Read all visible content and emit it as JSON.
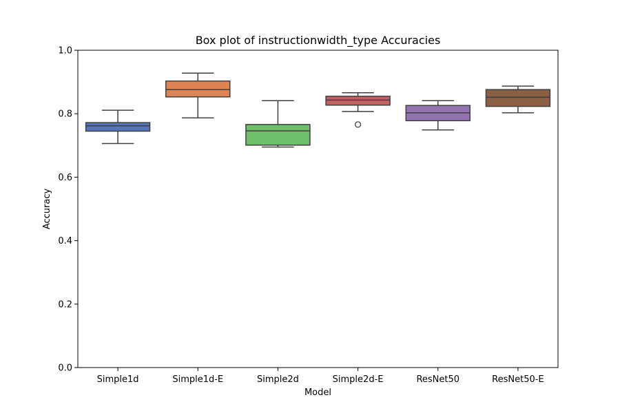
{
  "chart_data": {
    "type": "box",
    "title": "Box plot of instructionwidth_type Accuracies",
    "xlabel": "Model",
    "ylabel": "Accuracy",
    "ylim": [
      0,
      1
    ],
    "yticks": [
      0.0,
      0.2,
      0.4,
      0.6,
      0.8,
      1.0
    ],
    "ytick_labels": [
      "0.0",
      "0.2",
      "0.4",
      "0.6",
      "0.8",
      "1.0"
    ],
    "grid": false,
    "categories": [
      "Simple1d",
      "Simple1d-E",
      "Simple2d",
      "Simple2d-E",
      "ResNet50",
      "ResNet50-E"
    ],
    "boxes": [
      {
        "category": "Simple1d",
        "whisker_low": 0.706,
        "q1": 0.745,
        "median": 0.762,
        "q3": 0.772,
        "whisker_high": 0.811,
        "outliers": [],
        "color": "#5875b8"
      },
      {
        "category": "Simple1d-E",
        "whisker_low": 0.787,
        "q1": 0.853,
        "median": 0.876,
        "q3": 0.903,
        "whisker_high": 0.928,
        "outliers": [],
        "color": "#dd8452"
      },
      {
        "category": "Simple2d",
        "whisker_low": 0.695,
        "q1": 0.701,
        "median": 0.746,
        "q3": 0.766,
        "whisker_high": 0.841,
        "outliers": [],
        "color": "#6fbf6a"
      },
      {
        "category": "Simple2d-E",
        "whisker_low": 0.807,
        "q1": 0.827,
        "median": 0.843,
        "q3": 0.855,
        "whisker_high": 0.866,
        "outliers": [
          0.766
        ],
        "color": "#c95e61"
      },
      {
        "category": "ResNet50",
        "whisker_low": 0.749,
        "q1": 0.778,
        "median": 0.803,
        "q3": 0.826,
        "whisker_high": 0.841,
        "outliers": [],
        "color": "#9274b3"
      },
      {
        "category": "ResNet50-E",
        "whisker_low": 0.803,
        "q1": 0.823,
        "median": 0.852,
        "q3": 0.876,
        "whisker_high": 0.887,
        "outliers": [],
        "color": "#8b5f43"
      }
    ]
  }
}
